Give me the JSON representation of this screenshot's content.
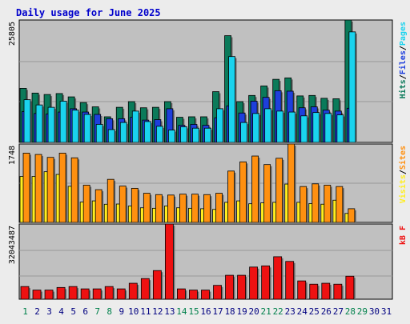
{
  "title": "Daily usage for June 2025",
  "colors": {
    "background": "#ececec",
    "plot_background": "#c0c0c0",
    "title_text": "#0000cc",
    "hits": "#0b7a5a",
    "files": "#1e3fdc",
    "pages": "#1ad3ee",
    "visits": "#ffee20",
    "sites": "#ff9010",
    "kbytes": "#ee1111",
    "weekday_label": "#000080",
    "weekend_label": "#00804b"
  },
  "chart_data": [
    {
      "type": "bar",
      "panel": "top",
      "max_label": "25805",
      "ylim": [
        0,
        25805
      ],
      "legend": [
        {
          "text": "Hits",
          "color": "#0b7a5a"
        },
        {
          "text": "Files",
          "color": "#1e3fdc"
        },
        {
          "text": "Pages",
          "color": "#1ad3ee"
        }
      ],
      "categories": [
        "1",
        "2",
        "3",
        "4",
        "5",
        "6",
        "7",
        "8",
        "9",
        "10",
        "11",
        "12",
        "13",
        "14",
        "15",
        "16",
        "17",
        "18",
        "19",
        "20",
        "21",
        "22",
        "23",
        "24",
        "25",
        "26",
        "27",
        "28",
        "29",
        "30",
        "31"
      ],
      "series": [
        {
          "name": "Hits",
          "values": [
            11400,
            10400,
            10100,
            10300,
            9600,
            8400,
            7500,
            5400,
            7400,
            8600,
            7300,
            7400,
            8600,
            5300,
            5400,
            5400,
            10700,
            22500,
            8600,
            9900,
            11900,
            13300,
            13600,
            9800,
            9900,
            9300,
            9200,
            25805,
            0,
            0,
            0
          ]
        },
        {
          "name": "Files",
          "values": [
            6500,
            6100,
            6000,
            6400,
            7100,
            6400,
            5900,
            5000,
            5000,
            5300,
            4700,
            4800,
            7100,
            3600,
            3800,
            3600,
            5200,
            7700,
            6200,
            8700,
            9500,
            10900,
            10800,
            7300,
            7500,
            6800,
            6600,
            7200,
            0,
            0,
            0
          ]
        },
        {
          "name": "Pages",
          "values": [
            9000,
            7900,
            7400,
            8700,
            6800,
            5900,
            3800,
            2700,
            4200,
            6600,
            4400,
            3400,
            2600,
            3300,
            3000,
            3000,
            7100,
            18100,
            4200,
            6100,
            7100,
            6600,
            6400,
            5600,
            6300,
            6100,
            5800,
            23300,
            0,
            0,
            0
          ]
        }
      ]
    },
    {
      "type": "bar",
      "panel": "middle",
      "max_label": "1748",
      "ylim": [
        0,
        1748
      ],
      "legend": [
        {
          "text": "Visits",
          "color": "#ffee20"
        },
        {
          "text": "Sites",
          "color": "#ff9010"
        }
      ],
      "categories": [
        "1",
        "2",
        "3",
        "4",
        "5",
        "6",
        "7",
        "8",
        "9",
        "10",
        "11",
        "12",
        "13",
        "14",
        "15",
        "16",
        "17",
        "18",
        "19",
        "20",
        "21",
        "22",
        "23",
        "24",
        "25",
        "26",
        "27",
        "28",
        "29",
        "30",
        "31"
      ],
      "series": [
        {
          "name": "Visits",
          "values": [
            1025,
            1025,
            1130,
            1070,
            805,
            454,
            480,
            405,
            410,
            366,
            326,
            315,
            366,
            326,
            315,
            305,
            290,
            448,
            480,
            416,
            436,
            448,
            855,
            448,
            420,
            406,
            495,
            200,
            0,
            0,
            0
          ]
        },
        {
          "name": "Sites",
          "values": [
            1545,
            1515,
            1450,
            1545,
            1440,
            830,
            730,
            960,
            810,
            760,
            650,
            620,
            610,
            630,
            630,
            620,
            650,
            1145,
            1350,
            1480,
            1290,
            1430,
            1748,
            800,
            860,
            830,
            800,
            305,
            0,
            0,
            0
          ]
        }
      ]
    },
    {
      "type": "bar",
      "panel": "bottom",
      "max_label": "32043487",
      "ylim": [
        0,
        32043487
      ],
      "legend": [
        {
          "text": "kB F",
          "color": "#ee1111"
        }
      ],
      "categories": [
        "1",
        "2",
        "3",
        "4",
        "5",
        "6",
        "7",
        "8",
        "9",
        "10",
        "11",
        "12",
        "13",
        "14",
        "15",
        "16",
        "17",
        "18",
        "19",
        "20",
        "21",
        "22",
        "23",
        "24",
        "25",
        "26",
        "27",
        "28",
        "29",
        "30",
        "31"
      ],
      "series": [
        {
          "name": "kB F",
          "values": [
            5400000,
            3900000,
            3900000,
            5000000,
            5400000,
            4400000,
            4400000,
            5400000,
            4400000,
            6800000,
            8800000,
            12200000,
            32043487,
            4400000,
            3900000,
            3900000,
            5900000,
            10200000,
            10200000,
            13700000,
            14200000,
            18100000,
            16100000,
            7800000,
            6400000,
            6800000,
            6400000,
            9800000,
            0,
            0,
            0
          ]
        }
      ]
    }
  ],
  "weekend_days": [
    "1",
    "7",
    "8",
    "14",
    "15",
    "21",
    "22",
    "28",
    "29"
  ]
}
